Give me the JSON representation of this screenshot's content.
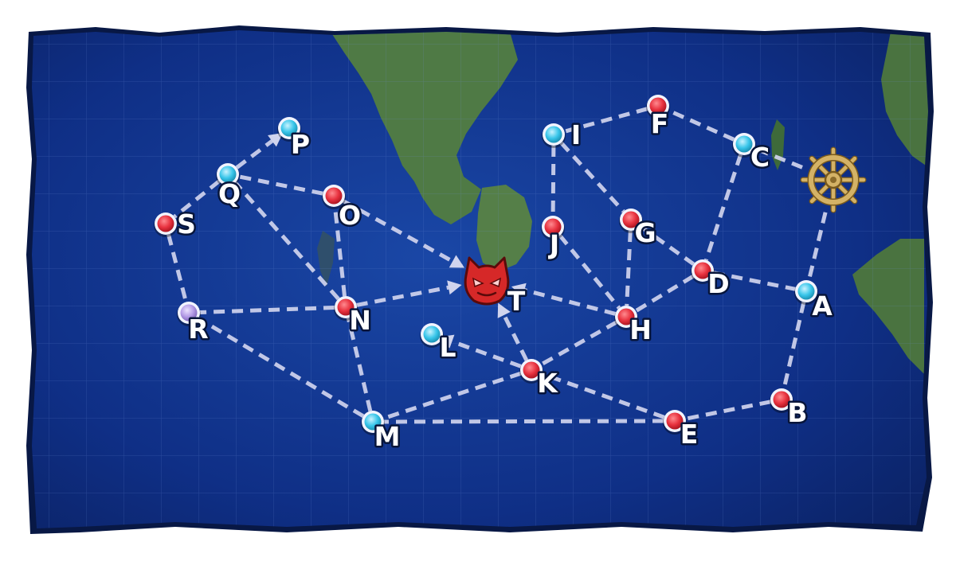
{
  "map": {
    "colors": {
      "ocean": "#0d2a78",
      "ocean_deep": "#0a1f5c",
      "land": "#4f7a45",
      "route": "#d0d4ee",
      "enemy_node": "#e8323f",
      "resource_node": "#39c6ea",
      "special_node": "#b49be6",
      "boss": "#d62828",
      "start": "#d4b266"
    },
    "start": {
      "name": "start-ship-wheel",
      "icon": "ship-wheel-icon"
    },
    "boss": {
      "name": "boss-node",
      "icon": "demon-face-icon",
      "label": "T"
    },
    "nodes": [
      {
        "id": "A",
        "label": "A",
        "type": "resource"
      },
      {
        "id": "B",
        "label": "B",
        "type": "enemy"
      },
      {
        "id": "C",
        "label": "C",
        "type": "resource"
      },
      {
        "id": "D",
        "label": "D",
        "type": "enemy"
      },
      {
        "id": "E",
        "label": "E",
        "type": "enemy"
      },
      {
        "id": "F",
        "label": "F",
        "type": "enemy"
      },
      {
        "id": "G",
        "label": "G",
        "type": "enemy"
      },
      {
        "id": "H",
        "label": "H",
        "type": "enemy"
      },
      {
        "id": "I",
        "label": "I",
        "type": "resource"
      },
      {
        "id": "J",
        "label": "J",
        "type": "enemy"
      },
      {
        "id": "K",
        "label": "K",
        "type": "enemy"
      },
      {
        "id": "L",
        "label": "L",
        "type": "resource"
      },
      {
        "id": "M",
        "label": "M",
        "type": "resource"
      },
      {
        "id": "N",
        "label": "N",
        "type": "enemy"
      },
      {
        "id": "O",
        "label": "O",
        "type": "enemy"
      },
      {
        "id": "P",
        "label": "P",
        "type": "resource"
      },
      {
        "id": "Q",
        "label": "Q",
        "type": "resource"
      },
      {
        "id": "R",
        "label": "R",
        "type": "special"
      },
      {
        "id": "S",
        "label": "S",
        "type": "enemy"
      }
    ],
    "routes": [
      {
        "from": "start",
        "to": "C",
        "arrow": false
      },
      {
        "from": "start",
        "to": "A",
        "arrow": false
      },
      {
        "from": "C",
        "to": "F",
        "arrow": false
      },
      {
        "from": "C",
        "to": "D",
        "arrow": false
      },
      {
        "from": "F",
        "to": "I",
        "arrow": false
      },
      {
        "from": "I",
        "to": "J",
        "arrow": false
      },
      {
        "from": "I",
        "to": "G",
        "arrow": false
      },
      {
        "from": "G",
        "to": "D",
        "arrow": false
      },
      {
        "from": "G",
        "to": "H",
        "arrow": false
      },
      {
        "from": "J",
        "to": "H",
        "arrow": false
      },
      {
        "from": "D",
        "to": "A",
        "arrow": false
      },
      {
        "from": "D",
        "to": "H",
        "arrow": false
      },
      {
        "from": "A",
        "to": "B",
        "arrow": false
      },
      {
        "from": "B",
        "to": "E",
        "arrow": false
      },
      {
        "from": "E",
        "to": "K",
        "arrow": false
      },
      {
        "from": "E",
        "to": "M",
        "arrow": false
      },
      {
        "from": "H",
        "to": "K",
        "arrow": false
      },
      {
        "from": "H",
        "to": "T",
        "arrow": true
      },
      {
        "from": "K",
        "to": "T",
        "arrow": true
      },
      {
        "from": "K",
        "to": "L",
        "arrow": true
      },
      {
        "from": "K",
        "to": "M",
        "arrow": false
      },
      {
        "from": "M",
        "to": "N",
        "arrow": false
      },
      {
        "from": "M",
        "to": "R",
        "arrow": false
      },
      {
        "from": "N",
        "to": "T",
        "arrow": true
      },
      {
        "from": "N",
        "to": "R",
        "arrow": false
      },
      {
        "from": "N",
        "to": "O",
        "arrow": false
      },
      {
        "from": "N",
        "to": "Q",
        "arrow": false
      },
      {
        "from": "O",
        "to": "T",
        "arrow": true
      },
      {
        "from": "O",
        "to": "Q",
        "arrow": false
      },
      {
        "from": "Q",
        "to": "P",
        "arrow": true
      },
      {
        "from": "Q",
        "to": "S",
        "arrow": false
      },
      {
        "from": "S",
        "to": "R",
        "arrow": false
      }
    ]
  }
}
